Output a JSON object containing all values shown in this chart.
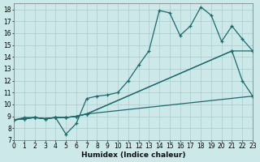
{
  "xlabel": "Humidex (Indice chaleur)",
  "xlim": [
    0,
    23
  ],
  "ylim": [
    7,
    18.5
  ],
  "xticks": [
    0,
    1,
    2,
    3,
    4,
    5,
    6,
    7,
    8,
    9,
    10,
    11,
    12,
    13,
    14,
    15,
    16,
    17,
    18,
    19,
    20,
    21,
    22,
    23
  ],
  "yticks": [
    7,
    8,
    9,
    10,
    11,
    12,
    13,
    14,
    15,
    16,
    17,
    18
  ],
  "background_color": "#cce8e8",
  "grid_color": "#aacccc",
  "line_color": "#1a6b6b",
  "line1": {
    "x": [
      0,
      1,
      2,
      3,
      4,
      5,
      6,
      7,
      8,
      9,
      10,
      11,
      12,
      13,
      14,
      15,
      16,
      17,
      18,
      19,
      20,
      21,
      22,
      23
    ],
    "y": [
      8.7,
      8.9,
      8.9,
      8.8,
      8.9,
      7.5,
      8.4,
      10.5,
      10.7,
      10.8,
      11.0,
      12.0,
      13.3,
      14.5,
      17.9,
      17.7,
      15.8,
      16.6,
      18.2,
      17.5,
      15.3,
      16.6,
      15.5,
      14.5
    ]
  },
  "line2": {
    "x": [
      0,
      1,
      2,
      3,
      4,
      5,
      6,
      7,
      21,
      22,
      23
    ],
    "y": [
      8.7,
      8.8,
      8.9,
      8.8,
      8.9,
      8.9,
      9.0,
      9.2,
      14.5,
      12.0,
      10.7
    ]
  },
  "line3": {
    "x": [
      0,
      1,
      2,
      3,
      4,
      5,
      6,
      7,
      21,
      23
    ],
    "y": [
      8.7,
      8.8,
      8.9,
      8.8,
      8.9,
      8.9,
      9.0,
      9.2,
      14.5,
      14.5
    ]
  },
  "line4": {
    "x": [
      0,
      1,
      2,
      3,
      4,
      5,
      6,
      7,
      23
    ],
    "y": [
      8.7,
      8.8,
      8.9,
      8.8,
      8.9,
      8.9,
      9.0,
      9.2,
      10.7
    ]
  }
}
